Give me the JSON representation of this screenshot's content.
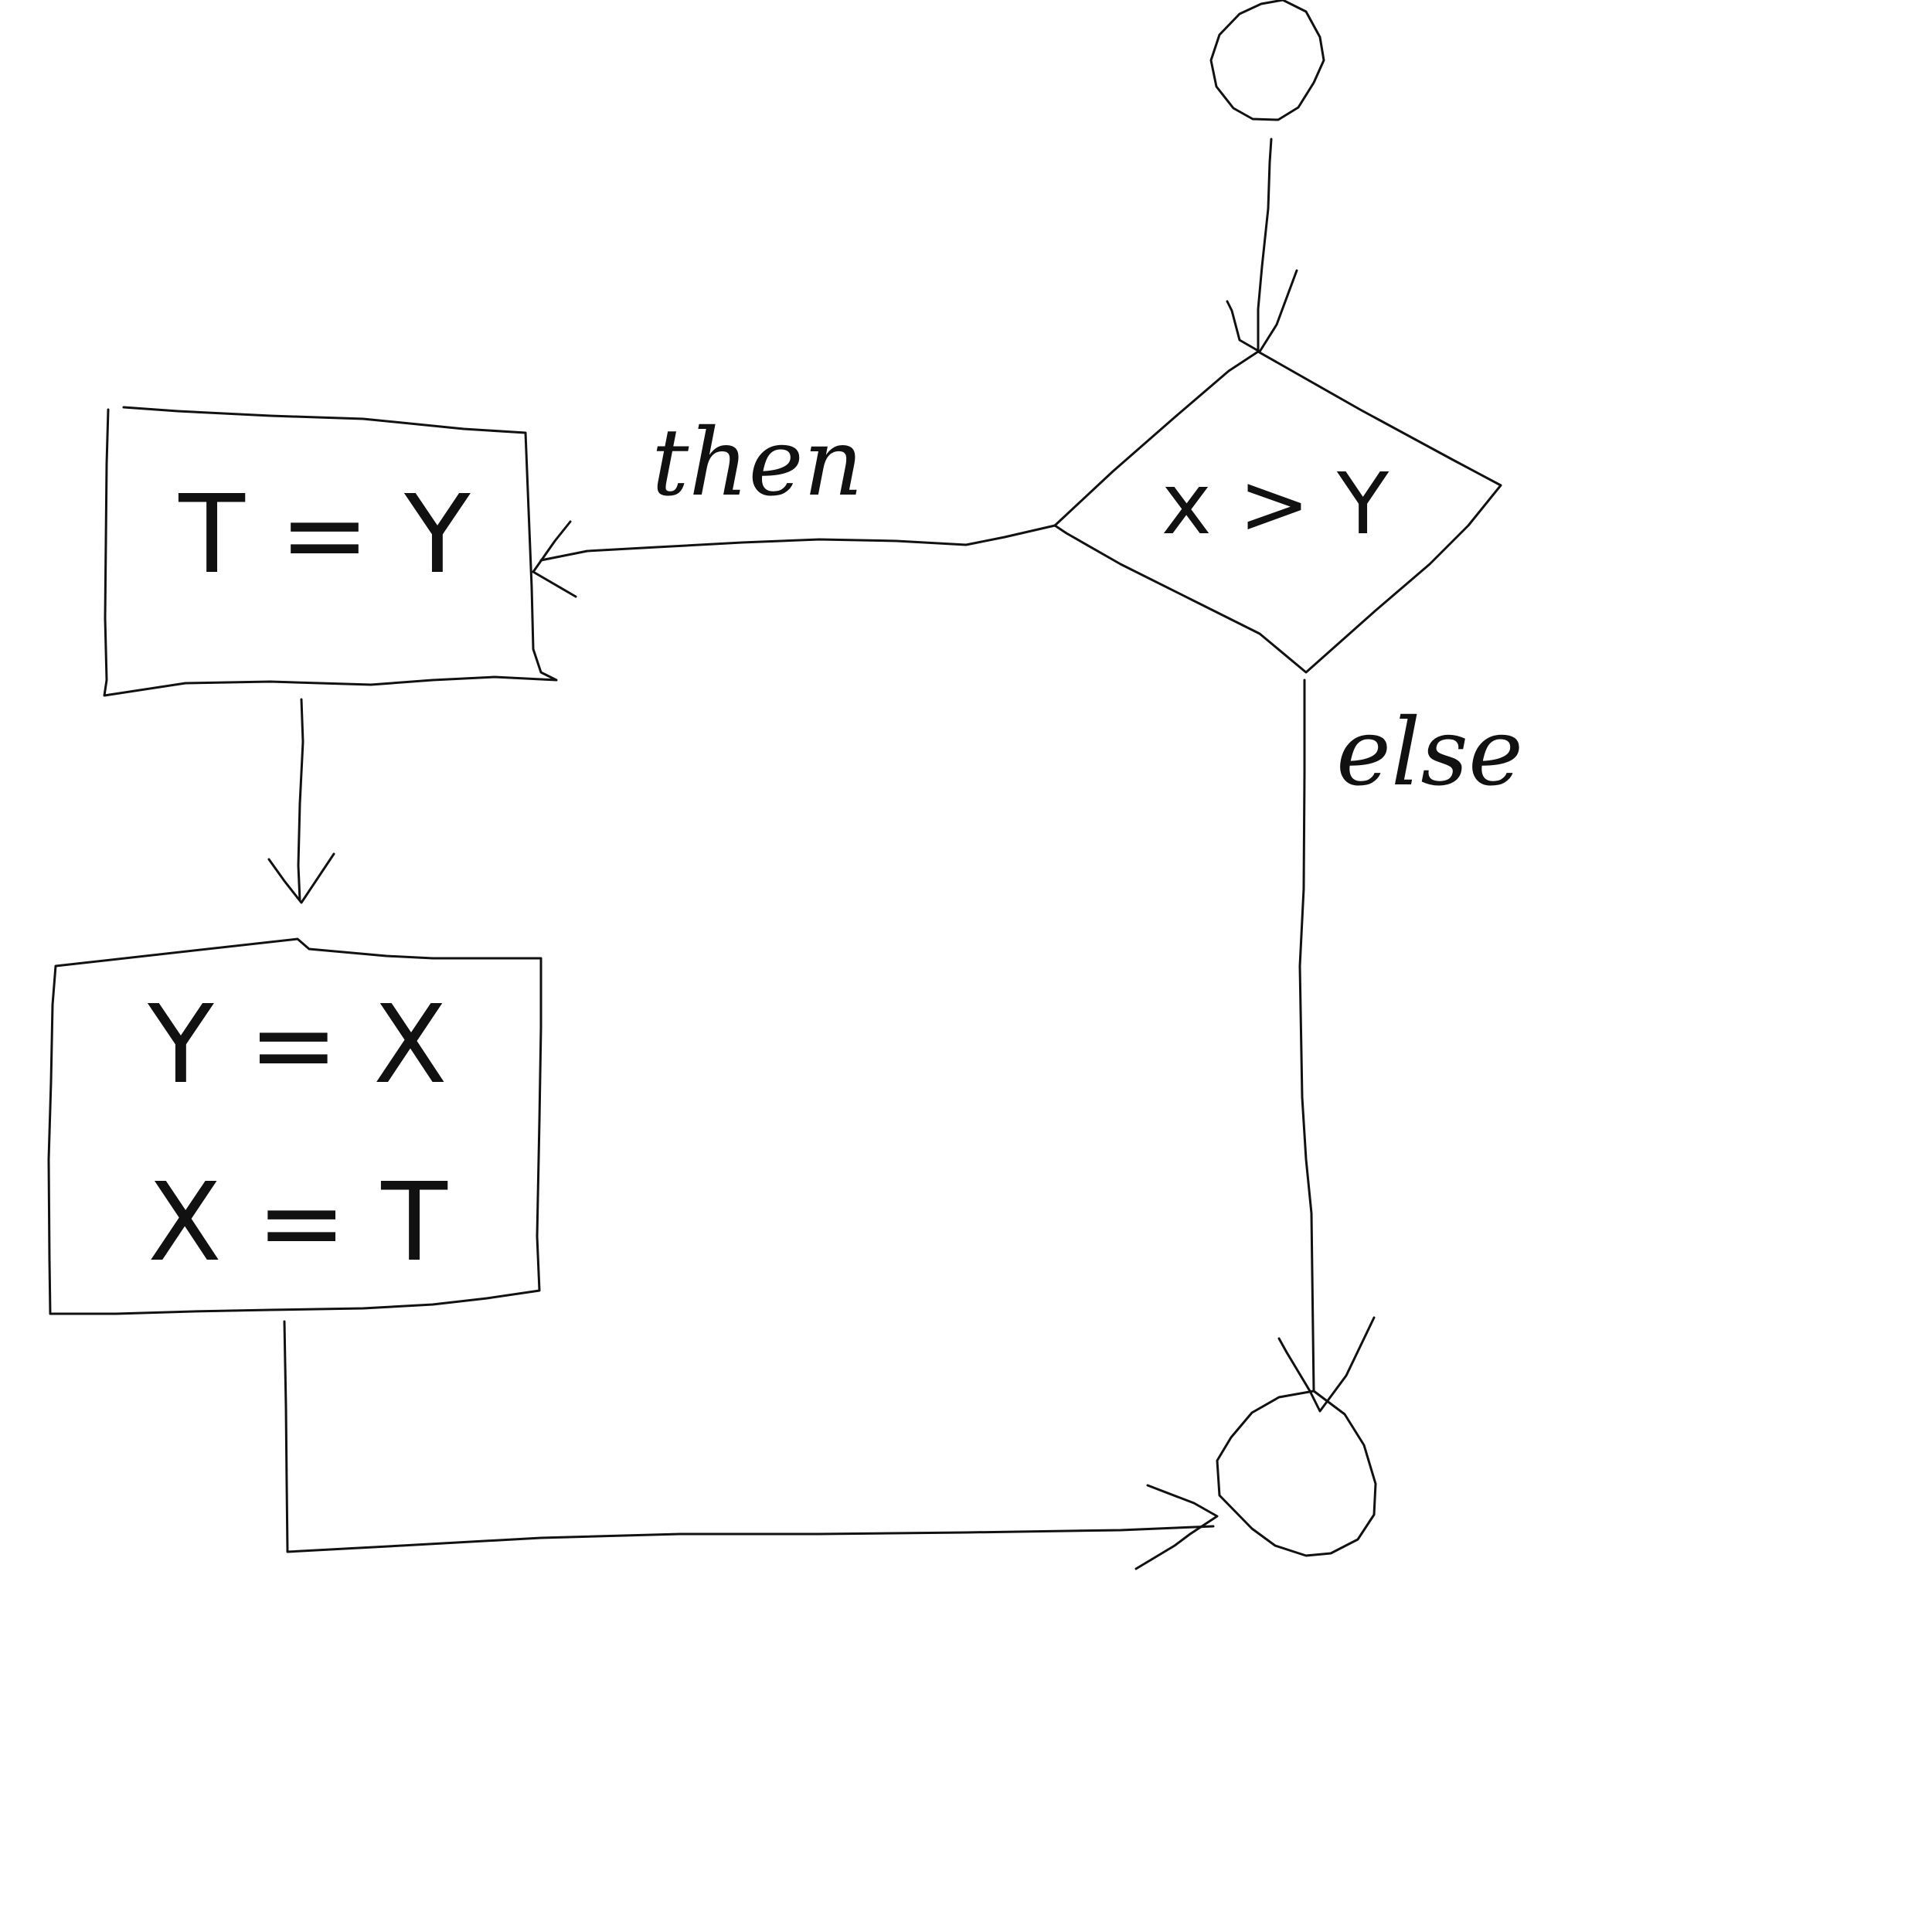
{
  "diagram": {
    "nodes": {
      "start": {
        "kind": "circle",
        "label": ""
      },
      "decision": {
        "kind": "diamond",
        "label": "x > Y"
      },
      "swap_temp": {
        "kind": "box",
        "label": "T = Y"
      },
      "swap_assign": {
        "kind": "box",
        "lines": [
          "Y = X",
          "X = T"
        ]
      },
      "end": {
        "kind": "circle",
        "label": ""
      }
    },
    "edges": [
      {
        "from": "start",
        "to": "decision",
        "label": ""
      },
      {
        "from": "decision",
        "to": "swap_temp",
        "label": "then"
      },
      {
        "from": "decision",
        "to": "end",
        "label": "else"
      },
      {
        "from": "swap_temp",
        "to": "swap_assign",
        "label": ""
      },
      {
        "from": "swap_assign",
        "to": "end",
        "label": ""
      }
    ],
    "stroke_color": "#111111",
    "background": "#ffffff"
  }
}
